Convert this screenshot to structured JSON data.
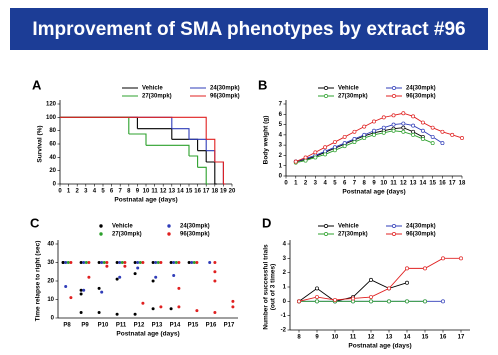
{
  "header": {
    "title": "Improvement of SMA phenotypes by extract #96"
  },
  "chart_data": [
    {
      "panel": "A",
      "type": "step",
      "x_label": "Postnatal age (days)",
      "y_label": "Survival (%)",
      "xlim": [
        0,
        20
      ],
      "xticks": [
        0,
        1,
        2,
        3,
        4,
        5,
        6,
        7,
        8,
        9,
        10,
        11,
        12,
        13,
        14,
        15,
        16,
        17,
        18,
        19,
        20
      ],
      "ylim": [
        0,
        120
      ],
      "yticks": [
        0,
        20,
        40,
        60,
        80,
        100,
        120
      ],
      "series": [
        {
          "name": "Vehicle",
          "color": "#000000",
          "x": [
            0,
            9,
            13,
            16,
            17,
            18
          ],
          "values": [
            100,
            83,
            67,
            50,
            33,
            0
          ]
        },
        {
          "name": "24(30mpk)",
          "color": "#2f3cb8",
          "x": [
            0,
            13,
            15,
            17,
            18,
            19
          ],
          "values": [
            100,
            83,
            67,
            50,
            33,
            0
          ]
        },
        {
          "name": "27(30mpk)",
          "color": "#2ca02c",
          "x": [
            0,
            8,
            10,
            15,
            16,
            17
          ],
          "values": [
            100,
            75,
            58,
            42,
            25,
            0
          ]
        },
        {
          "name": "96(30mpk)",
          "color": "#e02020",
          "x": [
            0,
            17,
            18,
            19
          ],
          "values": [
            100,
            67,
            33,
            0
          ]
        }
      ]
    },
    {
      "panel": "B",
      "type": "line",
      "x_label": "Postnatal age (days)",
      "y_label": "Body weight (g)",
      "xlim": [
        0,
        18
      ],
      "xticks": [
        0,
        1,
        2,
        3,
        4,
        5,
        6,
        7,
        8,
        9,
        10,
        11,
        12,
        13,
        14,
        15,
        16,
        17,
        18
      ],
      "ylim": [
        0,
        7
      ],
      "yticks": [
        0,
        1,
        2,
        3,
        4,
        5,
        6,
        7
      ],
      "series": [
        {
          "name": "Vehicle",
          "color": "#000000",
          "x": [
            1,
            2,
            3,
            4,
            5,
            6,
            7,
            8,
            9,
            10,
            11,
            12,
            13,
            14
          ],
          "values": [
            1.4,
            1.6,
            1.9,
            2.3,
            2.7,
            3.1,
            3.5,
            3.9,
            4.2,
            4.4,
            4.6,
            4.7,
            4.3,
            3.8
          ]
        },
        {
          "name": "24(30mpk)",
          "color": "#2f3cb8",
          "x": [
            1,
            2,
            3,
            4,
            5,
            6,
            7,
            8,
            9,
            10,
            11,
            12,
            13,
            14,
            15,
            16
          ],
          "values": [
            1.4,
            1.7,
            2,
            2.4,
            2.8,
            3.2,
            3.6,
            4,
            4.4,
            4.7,
            5,
            5.1,
            4.9,
            4.4,
            3.8,
            3.2
          ]
        },
        {
          "name": "27(30mpk)",
          "color": "#2ca02c",
          "x": [
            1,
            2,
            3,
            4,
            5,
            6,
            7,
            8,
            9,
            10,
            11,
            12,
            13,
            14,
            15
          ],
          "values": [
            1.3,
            1.5,
            1.8,
            2.1,
            2.5,
            2.9,
            3.3,
            3.7,
            4,
            4.2,
            4.4,
            4.3,
            4,
            3.6,
            3.2
          ]
        },
        {
          "name": "96(30mpk)",
          "color": "#e02020",
          "x": [
            1,
            2,
            3,
            4,
            5,
            6,
            7,
            8,
            9,
            10,
            11,
            12,
            13,
            14,
            15,
            16,
            17,
            18
          ],
          "values": [
            1.4,
            1.8,
            2.3,
            2.8,
            3.3,
            3.8,
            4.3,
            4.8,
            5.3,
            5.7,
            5.9,
            6.1,
            5.8,
            5.2,
            4.7,
            4.3,
            4,
            3.7
          ]
        }
      ]
    },
    {
      "panel": "C",
      "type": "strip",
      "x_label": "Postnatal age (days)",
      "y_label": "Time relapse to right (sec)",
      "categories": [
        "P8",
        "P9",
        "P10",
        "P11",
        "P12",
        "P13",
        "P14",
        "P15",
        "P16",
        "P17"
      ],
      "ylim": [
        0,
        40
      ],
      "yticks": [
        0,
        10,
        20,
        30,
        40
      ],
      "series": [
        {
          "name": "Vehicle",
          "color": "#000000",
          "x": [
            "P8",
            "P8",
            "P9",
            "P9",
            "P9",
            "P9",
            "P10",
            "P10",
            "P10",
            "P11",
            "P11",
            "P11",
            "P12",
            "P12",
            "P12",
            "P13",
            "P13",
            "P13",
            "P14",
            "P14",
            "P15"
          ],
          "values": [
            30,
            30,
            30,
            15,
            13,
            3,
            30,
            16,
            3,
            30,
            21,
            2,
            30,
            24,
            2,
            30,
            20,
            5,
            30,
            5,
            30
          ]
        },
        {
          "name": "24(30mpk)",
          "color": "#2f3cb8",
          "x": [
            "P8",
            "P8",
            "P9",
            "P9",
            "P10",
            "P10",
            "P11",
            "P11",
            "P12",
            "P12",
            "P13",
            "P13",
            "P14",
            "P14",
            "P15",
            "P16"
          ],
          "values": [
            30,
            17,
            30,
            15,
            30,
            14,
            30,
            22,
            30,
            27,
            30,
            22,
            30,
            23,
            30,
            30
          ]
        },
        {
          "name": "27(30mpk)",
          "color": "#2ca02c",
          "x": [
            "P8",
            "P9",
            "P10",
            "P11",
            "P12",
            "P13",
            "P14",
            "P15"
          ],
          "values": [
            30,
            30,
            30,
            30,
            30,
            30,
            30,
            30
          ]
        },
        {
          "name": "96(30mpk)",
          "color": "#e02020",
          "x": [
            "P8",
            "P8",
            "P9",
            "P9",
            "P10",
            "P10",
            "P11",
            "P11",
            "P12",
            "P12",
            "P13",
            "P13",
            "P14",
            "P14",
            "P14",
            "P15",
            "P15",
            "P16",
            "P16",
            "P16",
            "P16",
            "P17",
            "P17"
          ],
          "values": [
            30,
            11,
            30,
            22,
            30,
            28,
            30,
            28,
            30,
            8,
            30,
            6,
            30,
            16,
            6,
            30,
            4,
            30,
            25,
            20,
            3,
            9,
            6
          ]
        }
      ]
    },
    {
      "panel": "D",
      "type": "line",
      "x_label": "Postnatal age (days)",
      "y_label": [
        "Number of successful trials",
        "(out of 3 times)"
      ],
      "xlim": [
        7.5,
        17.5
      ],
      "xticks": [
        8,
        9,
        10,
        11,
        12,
        13,
        14,
        15,
        16,
        17
      ],
      "ylim": [
        -2,
        4
      ],
      "yticks": [
        -2,
        -1,
        0,
        1,
        2,
        3,
        4
      ],
      "series": [
        {
          "name": "Vehicle",
          "color": "#000000",
          "x": [
            8,
            9,
            10,
            11,
            12,
            13,
            14
          ],
          "values": [
            0,
            0.9,
            0,
            0.3,
            1.5,
            0.9,
            1.3
          ]
        },
        {
          "name": "24(30mpk)",
          "color": "#2f3cb8",
          "x": [
            8,
            9,
            10,
            11,
            12,
            13,
            14,
            15,
            16
          ],
          "values": [
            0,
            0,
            0,
            0,
            0,
            0,
            0,
            0,
            0
          ]
        },
        {
          "name": "27(30mpk)",
          "color": "#2ca02c",
          "x": [
            8,
            9,
            10,
            11,
            12,
            13,
            14,
            15
          ],
          "values": [
            0,
            0,
            0,
            0,
            0,
            0,
            0,
            0
          ]
        },
        {
          "name": "96(30mpk)",
          "color": "#e02020",
          "x": [
            8,
            9,
            10,
            11,
            12,
            13,
            14,
            15,
            16,
            17
          ],
          "values": [
            0,
            0.3,
            0.1,
            0.2,
            0.3,
            0.9,
            2.3,
            2.3,
            3,
            3
          ]
        }
      ]
    }
  ]
}
